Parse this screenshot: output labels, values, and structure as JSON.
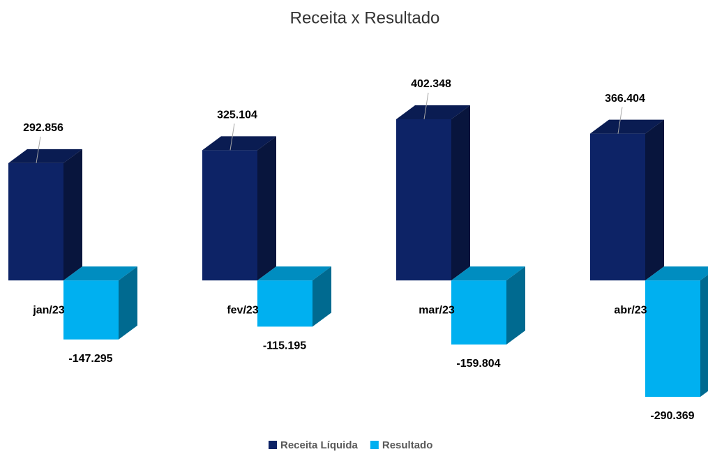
{
  "chart_data": {
    "type": "bar3d",
    "title": "Receita x Resultado",
    "categories": [
      "jan/23",
      "fev/23",
      "mar/23",
      "abr/23"
    ],
    "series": [
      {
        "name": "Receita Líquida",
        "color": "#0d2366",
        "values": [
          292856,
          325104,
          402348,
          366404
        ],
        "value_labels": [
          "292.856",
          "325.104",
          "402.348",
          "366.404"
        ]
      },
      {
        "name": "Resultado",
        "color": "#00b0f0",
        "values": [
          -147295,
          -115195,
          -159804,
          -290369
        ],
        "value_labels": [
          "-147.295",
          "-115.195",
          "-159.804",
          "-290.369"
        ]
      }
    ]
  }
}
